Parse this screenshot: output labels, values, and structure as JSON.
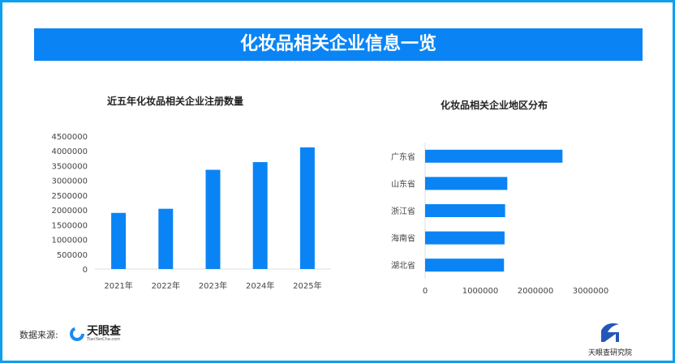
{
  "title": "化妆品相关企业信息一览",
  "source_label": "数据来源:",
  "source_logo": {
    "name": "天眼查",
    "sub": "TianYanCha.com"
  },
  "institute_logo": "天眼查研究院",
  "colors": {
    "bar": "#0a84f5",
    "banner": "#0a84f5",
    "frame": "#0c9ff0"
  },
  "chart_data": [
    {
      "type": "bar",
      "title": "近五年化妆品相关企业注册数量",
      "categories": [
        "2021年",
        "2022年",
        "2023年",
        "2024年",
        "2025年"
      ],
      "values": [
        1900000,
        2040000,
        3360000,
        3620000,
        4120000
      ],
      "ylim": [
        0,
        4500000
      ],
      "yticks": [
        "0",
        "500000",
        "1000000",
        "1500000",
        "2000000",
        "2500000",
        "3000000",
        "3500000",
        "4000000",
        "4500000"
      ],
      "grid": false
    },
    {
      "type": "bar",
      "orientation": "horizontal",
      "title": "化妆品相关企业地区分布",
      "categories": [
        "广东省",
        "山东省",
        "浙江省",
        "海南省",
        "湖北省"
      ],
      "values": [
        2490000,
        1490000,
        1450000,
        1440000,
        1430000
      ],
      "xlim": [
        0,
        3000000
      ],
      "xticks": [
        "0",
        "1000000",
        "2000000",
        "3000000"
      ],
      "grid": false
    }
  ]
}
